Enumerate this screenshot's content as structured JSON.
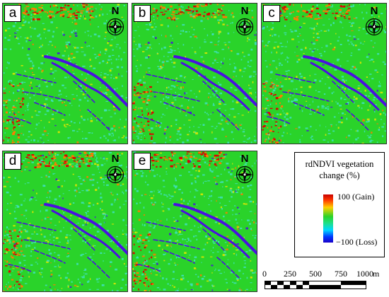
{
  "panels": [
    {
      "label": "a",
      "north": "N"
    },
    {
      "label": "b",
      "north": "N"
    },
    {
      "label": "c",
      "north": "N"
    },
    {
      "label": "d",
      "north": "N"
    },
    {
      "label": "e",
      "north": "N"
    }
  ],
  "legend": {
    "title_line1": "rdNDVI vegetation",
    "title_line2": "change (%)",
    "high": "100 (Gain)",
    "low": "−100 (Loss)",
    "colors": {
      "gain": "#c80000",
      "neutral": "#2ad32a",
      "loss": "#1a00c8"
    }
  },
  "scalebar": {
    "ticks": [
      "0",
      "250",
      "500",
      "750",
      "1000"
    ],
    "unit": "m"
  },
  "map_colors": {
    "background": "#2ad32a",
    "cyan": "#3fe0c0",
    "yellow": "#e6e600",
    "orange": "#ff7a00",
    "red": "#e00000",
    "river": "#4a10e0"
  },
  "icons": [
    "north-arrow-icon",
    "compass-rose-icon"
  ]
}
